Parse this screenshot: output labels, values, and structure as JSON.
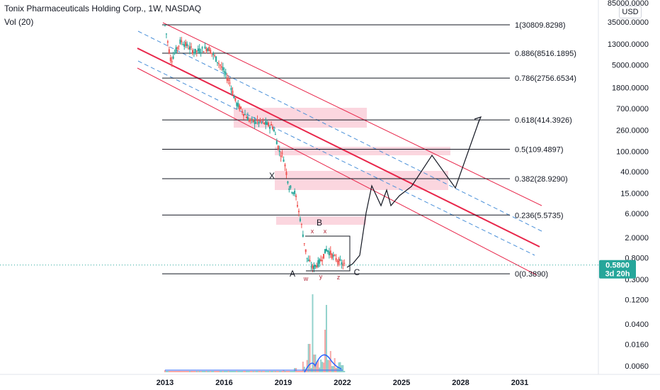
{
  "header": {
    "title": "Tonix Pharmaceuticals Holding Corp., 1W, NASDAQ",
    "indicator": "Vol (20)",
    "currency": "USD"
  },
  "colors": {
    "channel": "#e8264a",
    "midline": "#4a90d9",
    "zone": "#f9c8d4",
    "fib": "#131722",
    "path": "#131722",
    "up": "#26a69a",
    "down": "#ef5350",
    "badge": "#26a69a",
    "price_dots": "#26a69a"
  },
  "price_badge": {
    "price": "0.5800",
    "countdown": "3d 20h"
  },
  "chart_data": {
    "type": "candlestick",
    "scale": "log",
    "x_ticks": [
      "2013",
      "2016",
      "2019",
      "2022",
      "2025",
      "2028",
      "2031"
    ],
    "y_ticks": [
      "85000.0000",
      "35000.0000",
      "13000.0000",
      "5000.0000",
      "1800.0000",
      "700.0000",
      "260.0000",
      "100.0000",
      "40.0000",
      "15.0000",
      "6.0000",
      "2.0000",
      "0.8000",
      "0.3000",
      "0.1200",
      "0.0400",
      "0.0160",
      "0.0060"
    ],
    "fib_levels": [
      {
        "ratio": 1,
        "label": "1(30809.8298)"
      },
      {
        "ratio": 0.886,
        "label": "0.886(8516.1895)"
      },
      {
        "ratio": 0.786,
        "label": "0.786(2756.6534)"
      },
      {
        "ratio": 0.618,
        "label": "0.618(414.3926)"
      },
      {
        "ratio": 0.5,
        "label": "0.5(109.4897)"
      },
      {
        "ratio": 0.382,
        "label": "0.382(28.9290)"
      },
      {
        "ratio": 0.236,
        "label": "0.236(5.5735)"
      },
      {
        "ratio": 0,
        "label": "0(0.3890)"
      }
    ],
    "wave_labels": [
      "X",
      "A",
      "B",
      "C",
      "x",
      "x",
      "w",
      "y",
      "z"
    ],
    "last_price": 0.58
  }
}
